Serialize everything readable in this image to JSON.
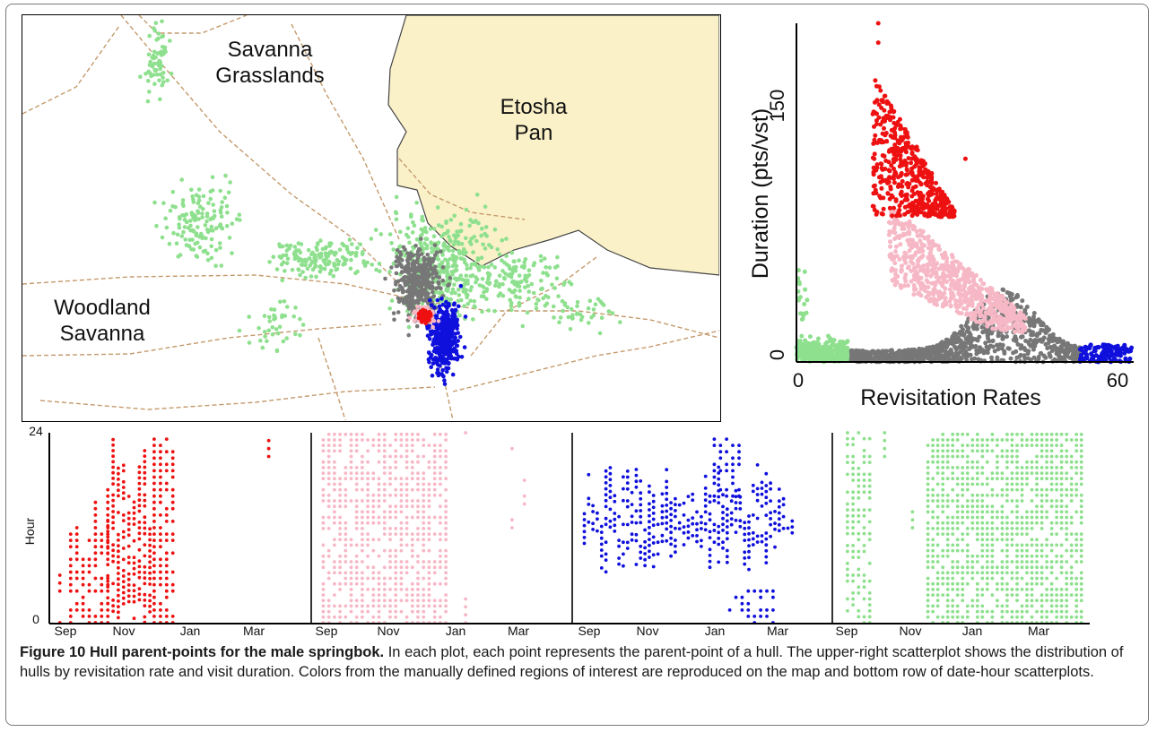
{
  "colors": {
    "red": "#ee1111",
    "pink": "#f7b8c6",
    "blue": "#1010dd",
    "green": "#8ee08e",
    "gray": "#777777",
    "pan": "#faf1c9",
    "road": "#c49a6c"
  },
  "map": {
    "labels": {
      "savanna_grasslands": "Savanna\nGrasslands",
      "etosha_pan": "Etosha\nPan",
      "woodland_savanna": "Woodland\nSavanna"
    }
  },
  "chart_data": [
    {
      "type": "scatter",
      "title": "",
      "xlabel": "Revisitation Rates",
      "ylabel": "Duration (pts/vst)",
      "xlim": [
        0,
        60
      ],
      "ylim": [
        0,
        175
      ],
      "x_ticks": [
        "0",
        "60"
      ],
      "y_ticks": [
        "0",
        "150"
      ],
      "series": [
        {
          "color": "green",
          "x_range": [
            0,
            10
          ],
          "y_range": [
            0,
            48
          ],
          "points_approx": 350
        },
        {
          "color": "gray",
          "x_range": [
            10,
            52
          ],
          "y_range": [
            0,
            38
          ],
          "points_approx": 900
        },
        {
          "color": "blue",
          "x_range": [
            52,
            62
          ],
          "y_range": [
            0,
            12
          ],
          "points_approx": 120
        },
        {
          "color": "pink",
          "x_range": [
            17,
            42
          ],
          "y_range": [
            18,
            82
          ],
          "points_approx": 700
        },
        {
          "color": "red",
          "x_range": [
            14,
            30
          ],
          "y_range": [
            75,
            168
          ],
          "points_approx": 500
        }
      ]
    },
    {
      "type": "scatter",
      "ylabel": "Hour",
      "ylim": [
        0,
        24
      ],
      "y_ticks": [
        "0",
        "24"
      ],
      "panels": [
        {
          "color": "red",
          "x_ticks": [
            "Sep",
            "Nov",
            "Jan",
            "Mar"
          ],
          "x_range_months": [
            0,
            7
          ],
          "note": "dense Oct-Jan, few points in Mar"
        },
        {
          "color": "pink",
          "x_ticks": [
            "Sep",
            "Nov",
            "Jan",
            "Mar"
          ],
          "x_range_months": [
            0,
            7
          ],
          "note": "dense Sep-Jan, sparse Jan-Mar"
        },
        {
          "color": "blue",
          "x_ticks": [
            "Sep",
            "Nov",
            "Jan",
            "Mar"
          ],
          "x_range_months": [
            0,
            7
          ],
          "note": "hours 6-20 across Sep-Mar"
        },
        {
          "color": "green",
          "x_ticks": [
            "Sep",
            "Nov",
            "Jan",
            "Mar"
          ],
          "x_range_months": [
            0,
            7
          ],
          "note": "all hours, dense Dec-Apr"
        }
      ]
    }
  ],
  "caption": {
    "title": "Figure 10 Hull parent-points for the male springbok.",
    "text": " In each plot, each point represents the parent-point of a hull. The upper-right scatterplot shows the distribution of hulls by revisitation rate and visit duration. Colors from the manually defined regions of interest are reproduced on the map and bottom row of date-hour scatterplots."
  }
}
